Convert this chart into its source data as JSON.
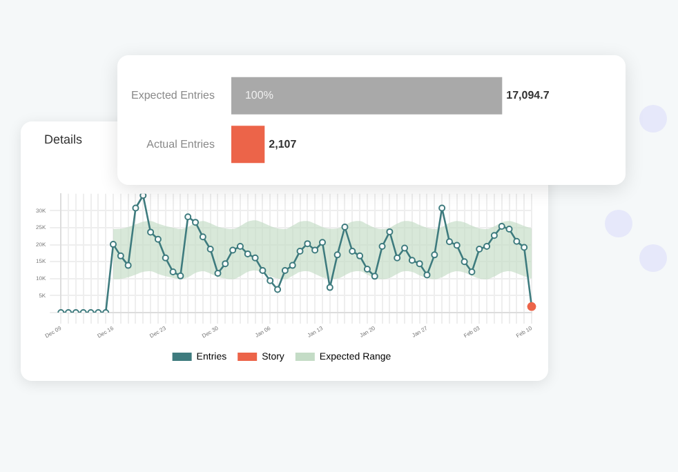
{
  "chart_data": [
    {
      "type": "bar",
      "orientation": "horizontal",
      "categories": [
        "Expected Entries",
        "Actual Entries"
      ],
      "values": [
        17094.7,
        2107
      ],
      "colors": [
        "#a9a9a9",
        "#ec6449"
      ],
      "value_labels": [
        "17,094.7",
        "2,107"
      ],
      "annotations": [
        "100%"
      ]
    },
    {
      "type": "line",
      "title": "Details",
      "categories": [
        "Dec 09",
        null,
        null,
        null,
        null,
        null,
        null,
        "Dec 16",
        null,
        null,
        null,
        null,
        null,
        null,
        "Dec 23",
        null,
        null,
        null,
        null,
        null,
        null,
        "Dec 30",
        null,
        null,
        null,
        null,
        null,
        null,
        "Jan 06",
        null,
        null,
        null,
        null,
        null,
        null,
        "Jan 13",
        null,
        null,
        null,
        null,
        null,
        null,
        "Jan 20",
        null,
        null,
        null,
        null,
        null,
        null,
        "Jan 27",
        null,
        null,
        null,
        null,
        null,
        null,
        "Feb 03",
        null,
        null,
        null,
        null,
        null,
        null,
        "Feb 10"
      ],
      "series": [
        {
          "name": "Entries",
          "type": "line",
          "color": "#3e7b7e",
          "marker": "circle",
          "values": [
            0,
            0,
            0,
            0,
            0,
            0,
            0,
            20100,
            16700,
            13900,
            30800,
            34500,
            23700,
            21600,
            16100,
            12000,
            10800,
            28200,
            26600,
            22300,
            18700,
            11600,
            14400,
            18400,
            19500,
            17300,
            16100,
            12400,
            9400,
            6800,
            12400,
            13900,
            18100,
            20300,
            18400,
            20700,
            7400,
            17000,
            25200,
            18100,
            16700,
            12800,
            10700,
            19500,
            23800,
            16100,
            19000,
            15400,
            14400,
            11100,
            17000,
            30800,
            20900,
            19800,
            15000,
            12000,
            18700,
            19500,
            22700,
            25400,
            24600,
            21000,
            19200,
            1800
          ]
        },
        {
          "name": "Story",
          "type": "scatter",
          "color": "#ec6449",
          "values": [
            null,
            null,
            null,
            null,
            null,
            null,
            null,
            null,
            null,
            null,
            null,
            null,
            null,
            null,
            null,
            null,
            null,
            null,
            null,
            null,
            null,
            null,
            null,
            null,
            null,
            null,
            null,
            null,
            null,
            null,
            null,
            null,
            null,
            null,
            null,
            null,
            null,
            null,
            null,
            null,
            null,
            null,
            null,
            null,
            null,
            null,
            null,
            null,
            null,
            null,
            null,
            null,
            null,
            null,
            null,
            null,
            null,
            null,
            null,
            null,
            null,
            null,
            null,
            1800
          ]
        },
        {
          "name": "Expected Range",
          "type": "area",
          "color": "#c4dcc6",
          "lower": [
            null,
            null,
            null,
            null,
            null,
            null,
            null,
            9800,
            9900,
            10400,
            11200,
            12000,
            12200,
            11400,
            10700,
            10200,
            9800,
            10400,
            11700,
            12200,
            11500,
            10500,
            10000,
            9800,
            10700,
            12000,
            12400,
            11700,
            10700,
            10000,
            9800,
            10800,
            12000,
            12200,
            11400,
            10400,
            9900,
            10000,
            11000,
            12000,
            12200,
            11200,
            10200,
            9800,
            10200,
            11400,
            12200,
            12000,
            11000,
            10200,
            9800,
            10400,
            11600,
            12200,
            11800,
            10800,
            10000,
            9800,
            10600,
            11800,
            12200,
            11600,
            10700,
            10000
          ],
          "values": [
            null,
            null,
            null,
            null,
            null,
            null,
            null,
            null,
            null,
            null,
            null,
            null,
            null,
            null,
            null,
            null,
            null,
            null,
            null,
            null,
            null,
            null,
            null,
            null,
            null,
            null,
            null,
            null,
            null,
            null,
            null,
            null,
            null,
            null,
            null,
            null,
            null,
            null,
            null,
            null,
            null,
            null,
            null,
            null,
            null,
            null,
            null,
            null,
            null,
            null,
            null,
            null,
            null,
            null,
            null,
            null,
            null,
            null,
            null,
            null,
            null,
            null,
            null,
            null
          ],
          "upper": [
            null,
            null,
            null,
            null,
            null,
            null,
            null,
            24600,
            24700,
            25200,
            26000,
            26800,
            27000,
            26200,
            25500,
            25000,
            24600,
            25200,
            26500,
            27000,
            26300,
            25300,
            24800,
            24600,
            25500,
            26800,
            27200,
            26500,
            25500,
            24800,
            24600,
            25600,
            26800,
            27000,
            26200,
            25200,
            24700,
            24800,
            25800,
            26800,
            27000,
            26000,
            25000,
            24600,
            25000,
            26200,
            27000,
            26800,
            25800,
            25000,
            24600,
            25200,
            26400,
            27000,
            26600,
            25600,
            24800,
            24600,
            25400,
            26600,
            27000,
            26400,
            25500,
            24800
          ]
        }
      ],
      "ylim": [
        0,
        35000
      ],
      "yticks": [
        {
          "value": 0,
          "label": null
        },
        {
          "value": 5000,
          "label": "5K"
        },
        {
          "value": 10000,
          "label": "10K"
        },
        {
          "value": 15000,
          "label": "15K"
        },
        {
          "value": 20000,
          "label": "20K"
        },
        {
          "value": 25000,
          "label": "25K"
        },
        {
          "value": 30000,
          "label": "30K"
        }
      ],
      "grid": true,
      "legend": "bottom"
    }
  ]
}
